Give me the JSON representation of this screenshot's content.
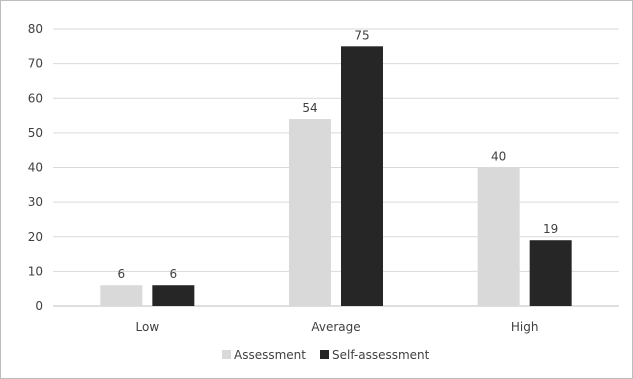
{
  "chart_data": {
    "type": "bar",
    "title": "",
    "xlabel": "",
    "ylabel": "",
    "categories": [
      "Low",
      "Average",
      "High"
    ],
    "series": [
      {
        "name": "Assessment",
        "values": [
          6,
          54,
          40
        ],
        "color": "#d9d9d9"
      },
      {
        "name": "Self-assessment",
        "values": [
          6,
          75,
          19
        ],
        "color": "#262626"
      }
    ],
    "ylim": [
      0,
      80
    ],
    "yticks": [
      "0",
      "10",
      "20",
      "30",
      "40",
      "50",
      "60",
      "70",
      "80"
    ],
    "grid": true,
    "legend_position": "bottom",
    "data_labels": true
  }
}
